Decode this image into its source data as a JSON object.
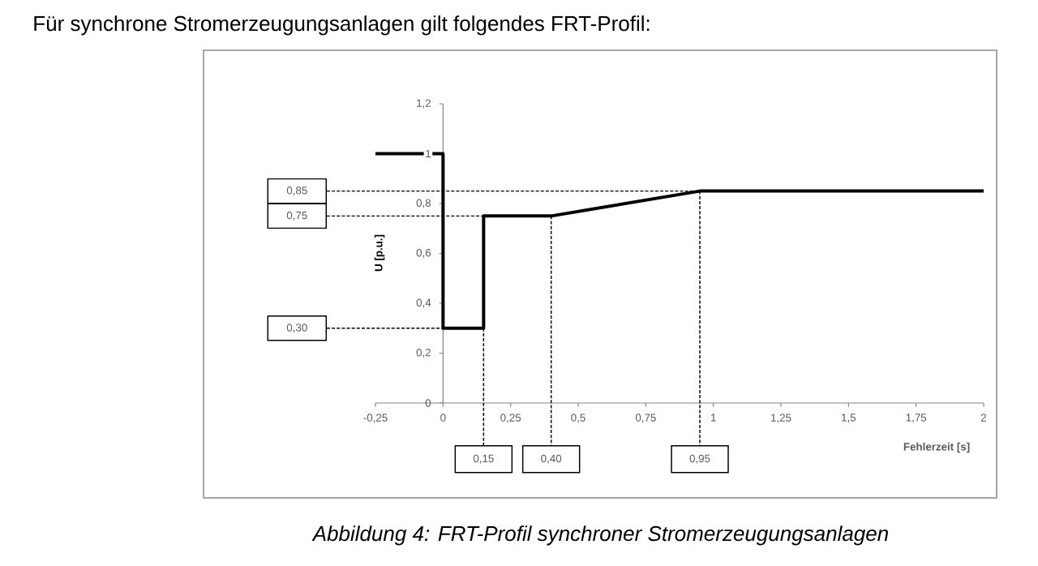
{
  "chart_data": {
    "type": "line",
    "title": "Für synchrone Stromerzeugungsanlagen gilt folgendes FRT-Profil:",
    "xlabel": "Fehlerzeit [s]",
    "ylabel": "U [p.u.]",
    "annotations": [
      "Abbildung 4: FRT-Profil synchroner Stromerzeugungsanlagen"
    ],
    "x": [
      -0.25,
      0,
      0,
      0.15,
      0.15,
      0.4,
      0.95,
      2
    ],
    "values": [
      1,
      1,
      0.3,
      0.3,
      0.75,
      0.75,
      0.85,
      0.85
    ],
    "color": "#000000",
    "xlim": [
      -0.25,
      2
    ],
    "ylim": [
      0,
      1.2
    ],
    "xticks": [
      {
        "value": -0.25,
        "label": "-0,25"
      },
      0,
      {
        "value": 0.25,
        "label": "0,25"
      },
      {
        "value": 0.5,
        "label": "0,5"
      },
      {
        "value": 0.75,
        "label": "0,75"
      },
      1,
      {
        "value": 1.25,
        "label": "1,25"
      },
      {
        "value": 1.5,
        "label": "1,5"
      },
      {
        "value": 1.75,
        "label": "1,75"
      },
      2
    ],
    "yticks": [
      0,
      {
        "value": 0.2,
        "label": "0,2"
      },
      {
        "value": 0.4,
        "label": "0,4"
      },
      {
        "value": 0.6,
        "label": "0,6"
      },
      {
        "value": 0.8,
        "label": "0,8"
      },
      1,
      {
        "value": 1.2,
        "label": "1,2"
      }
    ],
    "ref_lines": [
      {
        "axis": "y",
        "value": 0.85,
        "label": "0,85",
        "line_style": "dashed",
        "color": "#000000"
      },
      {
        "axis": "y",
        "value": 0.75,
        "label": "0,75",
        "line_style": "dashed",
        "color": "#000000"
      },
      {
        "axis": "y",
        "value": 0.3,
        "label": "0,30",
        "line_style": "dashed",
        "color": "#000000"
      },
      {
        "axis": "x",
        "value": 0.15,
        "label": "0,15",
        "line_style": "dashed",
        "color": "#000000"
      },
      {
        "axis": "x",
        "value": 0.4,
        "label": "0,40",
        "line_style": "dashed",
        "color": "#000000"
      },
      {
        "axis": "x",
        "value": 0.95,
        "label": "0,95",
        "line_style": "dashed",
        "color": "#000000"
      }
    ],
    "grid": false,
    "marker": "none",
    "line_style": "solid"
  }
}
